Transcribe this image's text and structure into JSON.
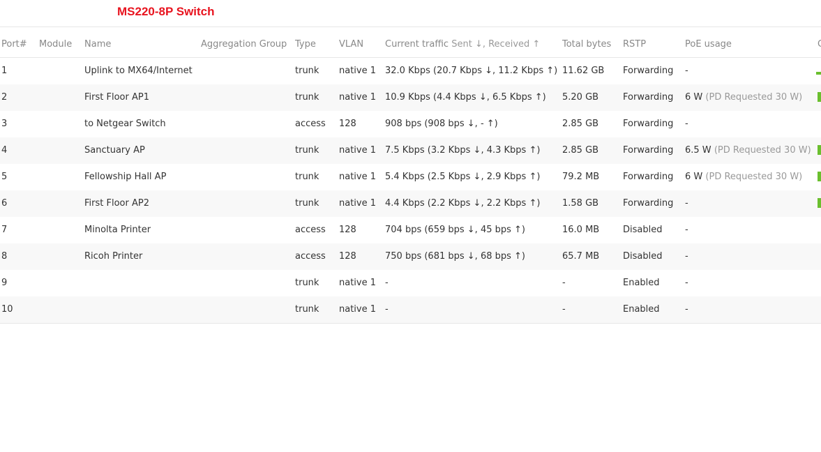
{
  "title": "MS220-8P Switch",
  "columns": [
    "Port#",
    "Module",
    "Name",
    "Aggregation Group",
    "Type",
    "VLAN",
    "Current traffic",
    "Sent ↓, Received ↑",
    "Total bytes",
    "RSTP",
    "PoE usage",
    "C"
  ],
  "rows": [
    {
      "port": "1",
      "module": "",
      "name": "Uplink to MX64/Internet",
      "agg": "",
      "type": "trunk",
      "vlan": "native 1",
      "traffic": "32.0 Kbps (20.7 Kbps ↓, 11.2 Kbps ↑)",
      "total": "11.62 GB",
      "rstp": "Forwarding",
      "poe": "-",
      "poe_req": "",
      "status_icon": "bar"
    },
    {
      "port": "2",
      "module": "",
      "name": "First Floor AP1",
      "agg": "",
      "type": "trunk",
      "vlan": "native 1",
      "traffic": "10.9 Kbps (4.4 Kbps ↓, 6.5 Kbps ↑)",
      "total": "5.20 GB",
      "rstp": "Forwarding",
      "poe": "6 W",
      "poe_req": "(PD Requested 30 W)",
      "status_icon": "square"
    },
    {
      "port": "3",
      "module": "",
      "name": "to Netgear Switch",
      "agg": "",
      "type": "access",
      "vlan": "128",
      "traffic": "908 bps (908 bps ↓, - ↑)",
      "total": "2.85 GB",
      "rstp": "Forwarding",
      "poe": "-",
      "poe_req": "",
      "status_icon": ""
    },
    {
      "port": "4",
      "module": "",
      "name": "Sanctuary AP",
      "agg": "",
      "type": "trunk",
      "vlan": "native 1",
      "traffic": "7.5 Kbps (3.2 Kbps ↓, 4.3 Kbps ↑)",
      "total": "2.85 GB",
      "rstp": "Forwarding",
      "poe": "6.5 W",
      "poe_req": "(PD Requested 30 W)",
      "status_icon": "square"
    },
    {
      "port": "5",
      "module": "",
      "name": "Fellowship Hall AP",
      "agg": "",
      "type": "trunk",
      "vlan": "native 1",
      "traffic": "5.4 Kbps (2.5 Kbps ↓, 2.9 Kbps ↑)",
      "total": "79.2 MB",
      "rstp": "Forwarding",
      "poe": "6 W",
      "poe_req": "(PD Requested 30 W)",
      "status_icon": "square"
    },
    {
      "port": "6",
      "module": "",
      "name": "First Floor AP2",
      "agg": "",
      "type": "trunk",
      "vlan": "native 1",
      "traffic": "4.4 Kbps (2.2 Kbps ↓, 2.2 Kbps ↑)",
      "total": "1.58 GB",
      "rstp": "Forwarding",
      "poe": "-",
      "poe_req": "",
      "status_icon": "square"
    },
    {
      "port": "7",
      "module": "",
      "name": "Minolta Printer",
      "agg": "",
      "type": "access",
      "vlan": "128",
      "traffic": "704 bps (659 bps ↓, 45 bps ↑)",
      "total": "16.0 MB",
      "rstp": "Disabled",
      "poe": "-",
      "poe_req": "",
      "status_icon": ""
    },
    {
      "port": "8",
      "module": "",
      "name": "Ricoh Printer",
      "agg": "",
      "type": "access",
      "vlan": "128",
      "traffic": "750 bps (681 bps ↓, 68 bps ↑)",
      "total": "65.7 MB",
      "rstp": "Disabled",
      "poe": "-",
      "poe_req": "",
      "status_icon": ""
    },
    {
      "port": "9",
      "module": "",
      "name": "",
      "agg": "",
      "type": "trunk",
      "vlan": "native 1",
      "traffic": "-",
      "total": "-",
      "rstp": "Enabled",
      "poe": "-",
      "poe_req": "",
      "status_icon": ""
    },
    {
      "port": "10",
      "module": "",
      "name": "",
      "agg": "",
      "type": "trunk",
      "vlan": "native 1",
      "traffic": "-",
      "total": "-",
      "rstp": "Enabled",
      "poe": "-",
      "poe_req": "",
      "status_icon": ""
    }
  ],
  "colors": {
    "title": "#e8141f",
    "status_green": "#6abf2e",
    "alt_row": "#f8f8f8"
  }
}
